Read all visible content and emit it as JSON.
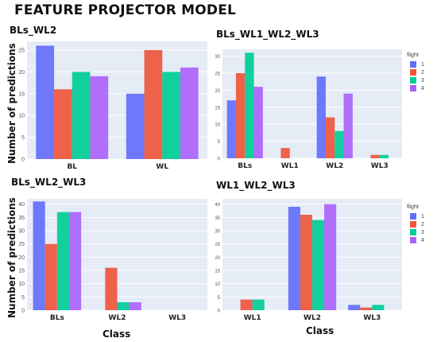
{
  "header": {
    "title": "FEATURE PROJECTOR MODEL"
  },
  "axes": {
    "ylabel": "Number of predictions",
    "xlabel": "Class"
  },
  "legend": {
    "title": "flight",
    "items": [
      "1",
      "2",
      "3",
      "4"
    ]
  },
  "colors": {
    "1": "#636efa",
    "2": "#EF553B",
    "3": "#00cc96",
    "4": "#ab63fa",
    "plot_bg": "#e5ecf6",
    "grid": "#ffffff"
  },
  "chart_data": [
    {
      "type": "bar",
      "title": "BLs_WL2",
      "categories": [
        "BL",
        "WL"
      ],
      "series": [
        {
          "name": "1",
          "values": [
            26,
            15
          ]
        },
        {
          "name": "2",
          "values": [
            16,
            25
          ]
        },
        {
          "name": "3",
          "values": [
            20,
            20
          ]
        },
        {
          "name": "4",
          "values": [
            19,
            21
          ]
        }
      ],
      "ylim": [
        0,
        27
      ],
      "yticks": [
        0,
        5,
        10,
        15,
        20,
        25
      ],
      "ylabel": "Number of predictions",
      "xlabel": ""
    },
    {
      "type": "bar",
      "title": "BLs_WL1_WL2_WL3",
      "categories": [
        "BLs",
        "WL1",
        "WL2",
        "WL3"
      ],
      "series": [
        {
          "name": "1",
          "values": [
            17,
            0,
            24,
            0
          ]
        },
        {
          "name": "2",
          "values": [
            25,
            3,
            12,
            1
          ]
        },
        {
          "name": "3",
          "values": [
            31,
            0,
            8,
            1
          ]
        },
        {
          "name": "4",
          "values": [
            21,
            0,
            19,
            0
          ]
        }
      ],
      "ylim": [
        0,
        32
      ],
      "yticks": [
        0,
        5,
        10,
        15,
        20,
        25,
        30
      ],
      "ylabel": "",
      "xlabel": "",
      "legend": "right"
    },
    {
      "type": "bar",
      "title": "BLs_WL2_WL3",
      "categories": [
        "BLs",
        "WL2",
        "WL3"
      ],
      "series": [
        {
          "name": "1",
          "values": [
            41,
            0,
            0
          ]
        },
        {
          "name": "2",
          "values": [
            25,
            16,
            0
          ]
        },
        {
          "name": "3",
          "values": [
            37,
            3,
            0
          ]
        },
        {
          "name": "4",
          "values": [
            37,
            3,
            0
          ]
        }
      ],
      "ylim": [
        0,
        42
      ],
      "yticks": [
        0,
        5,
        10,
        15,
        20,
        25,
        30,
        35,
        40
      ],
      "ylabel": "Number of predictions",
      "xlabel": "Class"
    },
    {
      "type": "bar",
      "title": "WL1_WL2_WL3",
      "categories": [
        "WL1",
        "WL2",
        "WL3"
      ],
      "series": [
        {
          "name": "1",
          "values": [
            0,
            39,
            2
          ]
        },
        {
          "name": "2",
          "values": [
            4,
            36,
            1
          ]
        },
        {
          "name": "3",
          "values": [
            4,
            34,
            2
          ]
        },
        {
          "name": "4",
          "values": [
            0,
            40,
            0
          ]
        }
      ],
      "ylim": [
        0,
        42
      ],
      "yticks": [
        0,
        5,
        10,
        15,
        20,
        25,
        30,
        35,
        40
      ],
      "ylabel": "",
      "xlabel": "Class",
      "legend": "right"
    }
  ]
}
